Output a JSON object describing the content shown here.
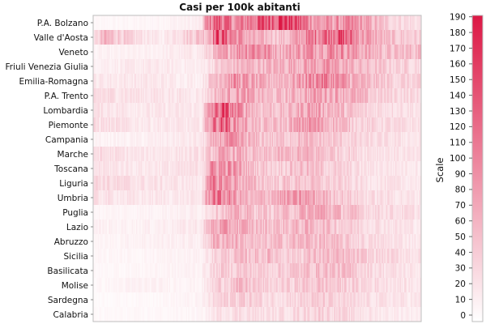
{
  "chart_data": {
    "type": "heatmap",
    "title": "Casi per 100k abitanti",
    "rows": [
      "P.A. Bolzano",
      "Valle d'Aosta",
      "Veneto",
      "Friuli Venezia Giulia",
      "Emilia-Romagna",
      "P.A. Trento",
      "Lombardia",
      "Piemonte",
      "Campania",
      "Marche",
      "Toscana",
      "Liguria",
      "Umbria",
      "Puglia",
      "Lazio",
      "Abruzzo",
      "Sicilia",
      "Basilicata",
      "Molise",
      "Sardegna",
      "Calabria"
    ],
    "n_columns": 290,
    "row_profiles": [
      [
        [
          0,
          6
        ],
        [
          50,
          8
        ],
        [
          95,
          15
        ],
        [
          100,
          95
        ],
        [
          110,
          140
        ],
        [
          125,
          90
        ],
        [
          140,
          120
        ],
        [
          170,
          180
        ],
        [
          185,
          120
        ],
        [
          200,
          80
        ],
        [
          230,
          90
        ],
        [
          260,
          40
        ],
        [
          289,
          25
        ]
      ],
      [
        [
          0,
          20
        ],
        [
          10,
          60
        ],
        [
          35,
          30
        ],
        [
          60,
          15
        ],
        [
          100,
          60
        ],
        [
          110,
          150
        ],
        [
          125,
          100
        ],
        [
          140,
          60
        ],
        [
          170,
          50
        ],
        [
          195,
          110
        ],
        [
          215,
          150
        ],
        [
          235,
          90
        ],
        [
          260,
          50
        ],
        [
          289,
          40
        ]
      ],
      [
        [
          0,
          10
        ],
        [
          50,
          12
        ],
        [
          95,
          20
        ],
        [
          110,
          60
        ],
        [
          120,
          80
        ],
        [
          140,
          110
        ],
        [
          165,
          70
        ],
        [
          190,
          90
        ],
        [
          215,
          100
        ],
        [
          240,
          70
        ],
        [
          265,
          50
        ],
        [
          289,
          60
        ]
      ],
      [
        [
          0,
          15
        ],
        [
          50,
          18
        ],
        [
          95,
          15
        ],
        [
          110,
          40
        ],
        [
          130,
          60
        ],
        [
          155,
          60
        ],
        [
          175,
          70
        ],
        [
          200,
          80
        ],
        [
          215,
          75
        ],
        [
          240,
          50
        ],
        [
          265,
          40
        ],
        [
          289,
          35
        ]
      ],
      [
        [
          0,
          20
        ],
        [
          50,
          20
        ],
        [
          95,
          15
        ],
        [
          110,
          70
        ],
        [
          125,
          90
        ],
        [
          150,
          60
        ],
        [
          175,
          70
        ],
        [
          200,
          110
        ],
        [
          215,
          90
        ],
        [
          240,
          55
        ],
        [
          265,
          40
        ],
        [
          289,
          35
        ]
      ],
      [
        [
          0,
          30
        ],
        [
          40,
          25
        ],
        [
          95,
          20
        ],
        [
          110,
          60
        ],
        [
          130,
          80
        ],
        [
          155,
          50
        ],
        [
          175,
          60
        ],
        [
          200,
          80
        ],
        [
          225,
          70
        ],
        [
          250,
          40
        ],
        [
          289,
          30
        ]
      ],
      [
        [
          0,
          25
        ],
        [
          40,
          20
        ],
        [
          95,
          20
        ],
        [
          105,
          100
        ],
        [
          115,
          140
        ],
        [
          125,
          100
        ],
        [
          145,
          55
        ],
        [
          170,
          50
        ],
        [
          190,
          80
        ],
        [
          210,
          65
        ],
        [
          240,
          35
        ],
        [
          289,
          25
        ]
      ],
      [
        [
          0,
          30
        ],
        [
          40,
          20
        ],
        [
          95,
          20
        ],
        [
          105,
          110
        ],
        [
          115,
          130
        ],
        [
          125,
          90
        ],
        [
          145,
          50
        ],
        [
          170,
          55
        ],
        [
          190,
          90
        ],
        [
          210,
          65
        ],
        [
          240,
          35
        ],
        [
          289,
          25
        ]
      ],
      [
        [
          0,
          10
        ],
        [
          40,
          12
        ],
        [
          95,
          20
        ],
        [
          110,
          70
        ],
        [
          120,
          85
        ],
        [
          140,
          55
        ],
        [
          160,
          45
        ],
        [
          185,
          55
        ],
        [
          210,
          45
        ],
        [
          240,
          30
        ],
        [
          289,
          20
        ]
      ],
      [
        [
          0,
          30
        ],
        [
          40,
          20
        ],
        [
          95,
          25
        ],
        [
          110,
          65
        ],
        [
          125,
          70
        ],
        [
          145,
          45
        ],
        [
          165,
          55
        ],
        [
          190,
          60
        ],
        [
          215,
          45
        ],
        [
          240,
          30
        ],
        [
          289,
          20
        ]
      ],
      [
        [
          0,
          25
        ],
        [
          40,
          20
        ],
        [
          95,
          25
        ],
        [
          105,
          90
        ],
        [
          120,
          90
        ],
        [
          140,
          55
        ],
        [
          160,
          40
        ],
        [
          185,
          55
        ],
        [
          210,
          40
        ],
        [
          240,
          25
        ],
        [
          289,
          20
        ]
      ],
      [
        [
          0,
          35
        ],
        [
          40,
          25
        ],
        [
          95,
          20
        ],
        [
          105,
          100
        ],
        [
          120,
          85
        ],
        [
          140,
          55
        ],
        [
          160,
          45
        ],
        [
          185,
          50
        ],
        [
          210,
          40
        ],
        [
          240,
          25
        ],
        [
          289,
          20
        ]
      ],
      [
        [
          0,
          25
        ],
        [
          40,
          20
        ],
        [
          95,
          20
        ],
        [
          105,
          120
        ],
        [
          120,
          90
        ],
        [
          140,
          50
        ],
        [
          160,
          70
        ],
        [
          185,
          80
        ],
        [
          210,
          55
        ],
        [
          240,
          30
        ],
        [
          289,
          20
        ]
      ],
      [
        [
          0,
          8
        ],
        [
          40,
          10
        ],
        [
          95,
          15
        ],
        [
          110,
          50
        ],
        [
          130,
          60
        ],
        [
          155,
          45
        ],
        [
          175,
          55
        ],
        [
          200,
          75
        ],
        [
          220,
          55
        ],
        [
          245,
          35
        ],
        [
          289,
          25
        ]
      ],
      [
        [
          0,
          12
        ],
        [
          40,
          12
        ],
        [
          95,
          20
        ],
        [
          105,
          70
        ],
        [
          120,
          75
        ],
        [
          145,
          55
        ],
        [
          170,
          55
        ],
        [
          195,
          60
        ],
        [
          220,
          45
        ],
        [
          245,
          30
        ],
        [
          289,
          20
        ]
      ],
      [
        [
          0,
          8
        ],
        [
          40,
          12
        ],
        [
          95,
          15
        ],
        [
          105,
          60
        ],
        [
          120,
          70
        ],
        [
          145,
          45
        ],
        [
          170,
          55
        ],
        [
          195,
          60
        ],
        [
          220,
          45
        ],
        [
          245,
          30
        ],
        [
          289,
          20
        ]
      ],
      [
        [
          0,
          8
        ],
        [
          40,
          8
        ],
        [
          95,
          12
        ],
        [
          110,
          40
        ],
        [
          130,
          50
        ],
        [
          155,
          55
        ],
        [
          175,
          40
        ],
        [
          200,
          55
        ],
        [
          225,
          50
        ],
        [
          250,
          35
        ],
        [
          289,
          25
        ]
      ],
      [
        [
          0,
          6
        ],
        [
          40,
          8
        ],
        [
          95,
          12
        ],
        [
          110,
          40
        ],
        [
          130,
          45
        ],
        [
          155,
          40
        ],
        [
          175,
          45
        ],
        [
          200,
          55
        ],
        [
          225,
          50
        ],
        [
          250,
          30
        ],
        [
          289,
          20
        ]
      ],
      [
        [
          0,
          6
        ],
        [
          40,
          12
        ],
        [
          95,
          10
        ],
        [
          110,
          40
        ],
        [
          130,
          55
        ],
        [
          155,
          35
        ],
        [
          175,
          40
        ],
        [
          200,
          50
        ],
        [
          225,
          40
        ],
        [
          250,
          30
        ],
        [
          289,
          20
        ]
      ],
      [
        [
          0,
          5
        ],
        [
          40,
          6
        ],
        [
          95,
          10
        ],
        [
          110,
          35
        ],
        [
          130,
          45
        ],
        [
          155,
          30
        ],
        [
          175,
          35
        ],
        [
          200,
          40
        ],
        [
          225,
          30
        ],
        [
          250,
          25
        ],
        [
          289,
          20
        ]
      ],
      [
        [
          0,
          5
        ],
        [
          40,
          6
        ],
        [
          95,
          8
        ],
        [
          110,
          25
        ],
        [
          130,
          30
        ],
        [
          155,
          25
        ],
        [
          175,
          30
        ],
        [
          200,
          40
        ],
        [
          225,
          30
        ],
        [
          250,
          20
        ],
        [
          289,
          15
        ]
      ]
    ],
    "color_scale": {
      "title": "Scale",
      "min": 0,
      "max": 195,
      "ticks": [
        0,
        10,
        20,
        30,
        40,
        50,
        60,
        70,
        80,
        90,
        100,
        110,
        120,
        130,
        140,
        150,
        160,
        170,
        180,
        190
      ],
      "low_color": "#ffffff",
      "high_color": "#dc1845"
    },
    "xlabel": "",
    "ylabel": ""
  }
}
